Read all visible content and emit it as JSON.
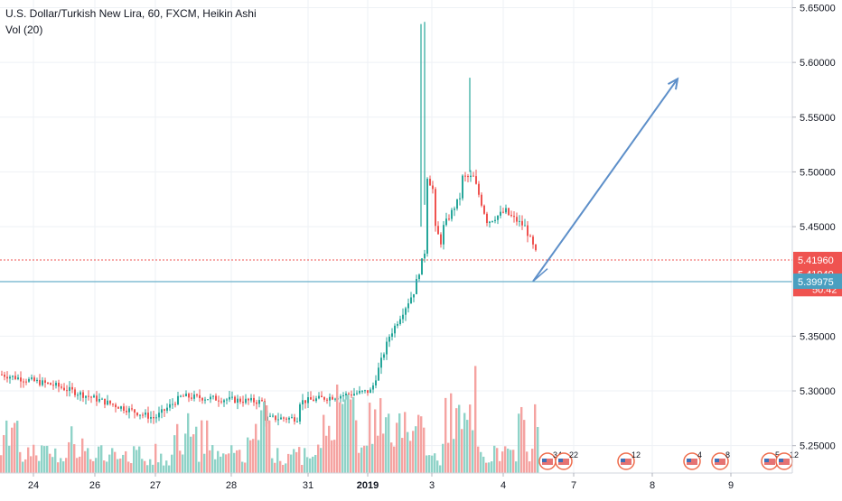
{
  "header": {
    "symbol_line": "U.S. Dollar/Turkish New Lira, 60, FXCM, Heikin Ashi",
    "volume_line": "Vol (20)"
  },
  "chart_data": {
    "type": "candlestick",
    "title": "U.S. Dollar/Turkish New Lira, 60, FXCM, Heikin Ashi",
    "price_axis": {
      "ticks": [
        "5.65000",
        "5.60000",
        "5.55000",
        "5.50000",
        "5.45000",
        "5.35000",
        "5.30000",
        "5.25000"
      ],
      "range": [
        5.24,
        5.655
      ]
    },
    "time_axis": {
      "ticks": [
        "24",
        "26",
        "27",
        "28",
        "31",
        "2019",
        "3",
        "4",
        "7",
        "8",
        "9"
      ]
    },
    "price_labels": [
      {
        "value": "5.41960",
        "color": "#ef5350",
        "style": "dotted"
      },
      {
        "value": "5.41949",
        "color": "#ef5350",
        "style": "none"
      },
      {
        "value": "50:42",
        "color": "#ef5350",
        "style": "none"
      },
      {
        "value": "5.39975",
        "color": "#4a9fc0",
        "style": "solid"
      }
    ],
    "trend_arrow": {
      "from": [
        5.42,
        "4"
      ],
      "to": [
        5.58,
        "8"
      ]
    },
    "event_markers": [
      {
        "label": "34"
      },
      {
        "label": "22"
      },
      {
        "label": "12"
      },
      {
        "label": "4"
      },
      {
        "label": "8"
      },
      {
        "label": "5"
      },
      {
        "label": "12"
      }
    ],
    "colors": {
      "up": "#26a69a",
      "down": "#ef5350",
      "vol_up": "#8fd3c8",
      "vol_down": "#f5a3a1",
      "arrow": "#5d8fc9",
      "grid": "#eef1f5"
    },
    "price_path": [
      {
        "segment": "Dec 24-27",
        "level_start": 5.305,
        "level_end": 5.29
      },
      {
        "segment": "Dec 27-31",
        "level_start": 5.29,
        "level_end": 5.295
      },
      {
        "segment": "Jan 2",
        "level_start": 5.3,
        "level_end": 5.4
      },
      {
        "segment": "Jan 3 spike",
        "high": 5.635,
        "level_end": 5.43
      },
      {
        "segment": "Jan 3-4",
        "high": 5.585,
        "level_end": 5.42
      }
    ]
  }
}
